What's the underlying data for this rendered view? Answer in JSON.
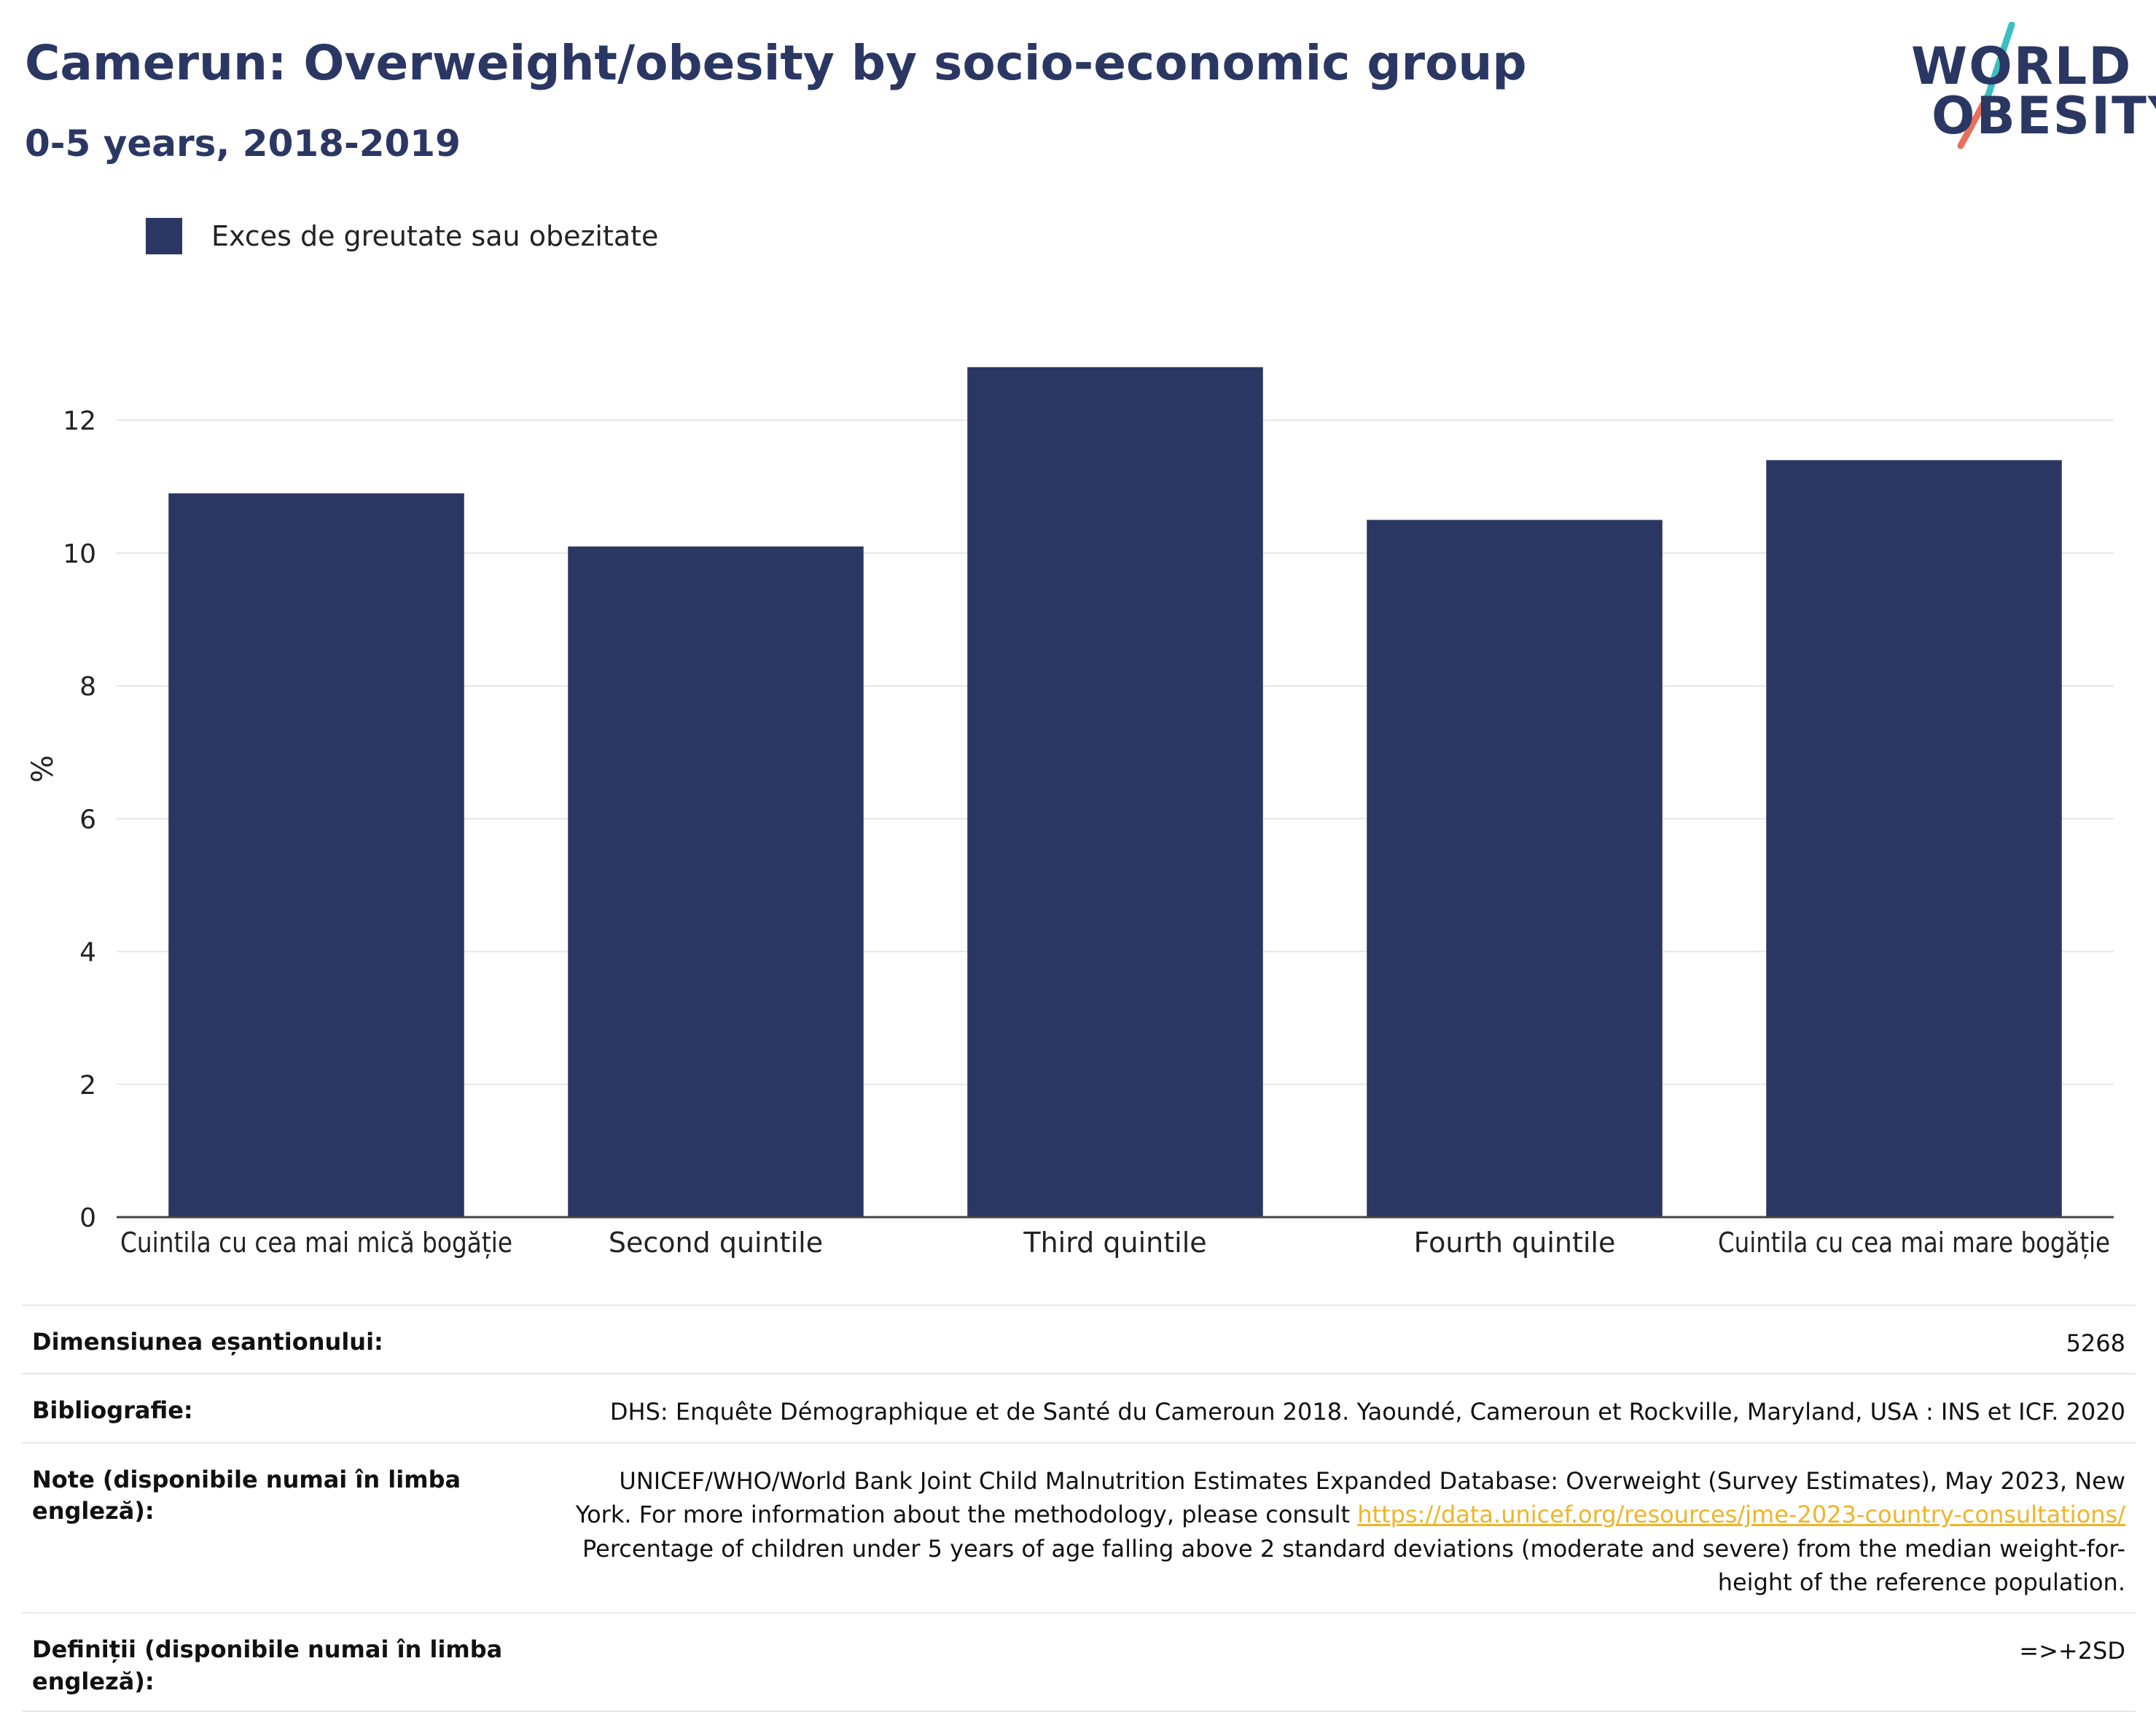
{
  "header": {
    "title": "Camerun: Overweight/obesity by socio-economic group",
    "subtitle": "0-5 years, 2018-2019",
    "logo_line1": "WORLD",
    "logo_line2": "OBESITY"
  },
  "legend": {
    "label": "Exces de greutate sau obezitate"
  },
  "colors": {
    "bar": "#2b3763",
    "title": "#2b3763",
    "grid": "#e6e6e6",
    "axis": "#444444",
    "link": "#f0b429",
    "logo_teal": "#3bbfbf",
    "logo_coral": "#e8705a"
  },
  "chart_data": {
    "type": "bar",
    "title": "Camerun: Overweight/obesity by socio-economic group",
    "subtitle": "0-5 years, 2018-2019",
    "xlabel": "",
    "ylabel": "%",
    "categories": [
      "Cuintila cu cea mai mică bogăție",
      "Second quintile",
      "Third quintile",
      "Fourth quintile",
      "Cuintila cu cea mai mare bogăție"
    ],
    "series": [
      {
        "name": "Exces de greutate sau obezitate",
        "values": [
          10.9,
          10.1,
          12.8,
          10.5,
          11.4
        ]
      }
    ],
    "ylim": [
      0,
      13.5
    ],
    "yticks": [
      0,
      2,
      4,
      6,
      8,
      10,
      12
    ],
    "grid": true,
    "legend_position": "top-left"
  },
  "footer": {
    "rows": [
      {
        "key": "Dimensiunea eșantionului:",
        "value": "5268"
      },
      {
        "key": "Bibliografie:",
        "value": "DHS: Enquête Démographique et de Santé du Cameroun 2018. Yaoundé, Cameroun et Rockville, Maryland, USA : INS et ICF. 2020"
      },
      {
        "key": "Note (disponibile numai în limba engleză):",
        "value_pre": "UNICEF/WHO/World Bank Joint Child Malnutrition Estimates Expanded Database: Overweight (Survey Estimates), May 2023, New York. For more information about the methodology, please consult ",
        "link": "https://data.unicef.org/resources/jme-2023-country-consultations/",
        "value_post": " Percentage of children under 5 years of age falling above 2 standard deviations (moderate and severe) from the median weight-for-height of the reference population."
      },
      {
        "key": "Definiții (disponibile numai în limba engleză):",
        "value": "=>+2SD"
      }
    ]
  }
}
